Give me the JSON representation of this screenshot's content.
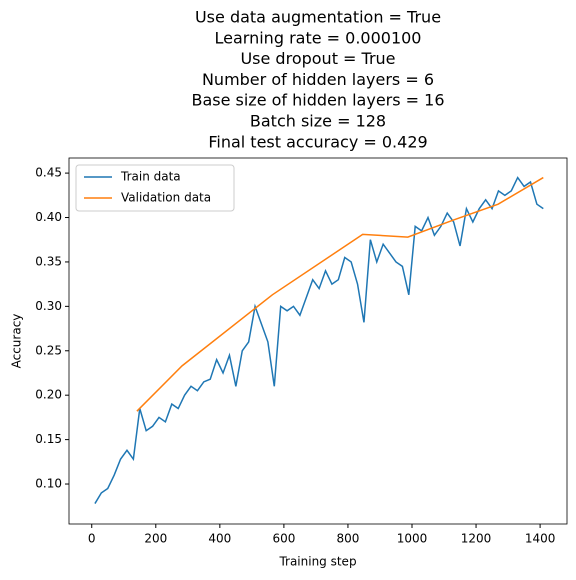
{
  "chart_data": {
    "type": "line",
    "title": [
      "Use data augmentation = True",
      "Learning rate = 0.000100",
      "Use dropout = True",
      "Number of hidden layers = 6",
      "Base size of hidden layers = 16",
      "Batch size = 128",
      "Final test accuracy = 0.429"
    ],
    "xlabel": "Training step",
    "ylabel": "Accuracy",
    "xlim": [
      -71,
      1484
    ],
    "ylim": [
      0.055,
      0.467
    ],
    "xticks": [
      0,
      200,
      400,
      600,
      800,
      1000,
      1200,
      1400
    ],
    "yticks": [
      {
        "value": 0.1,
        "label": "0.10"
      },
      0.15,
      {
        "value": 0.2,
        "label": "0.20"
      },
      0.25,
      {
        "value": 0.3,
        "label": "0.30"
      },
      0.35,
      {
        "value": 0.4,
        "label": "0.40"
      },
      0.45
    ],
    "legend": "upper left",
    "series": [
      {
        "name": "Train data",
        "color": "#1f77b4",
        "x": [
          10,
          30,
          50,
          70,
          90,
          110,
          130,
          150,
          170,
          190,
          210,
          230,
          250,
          270,
          290,
          310,
          330,
          350,
          370,
          390,
          410,
          430,
          450,
          470,
          490,
          510,
          530,
          550,
          570,
          590,
          610,
          630,
          650,
          670,
          690,
          710,
          730,
          750,
          770,
          790,
          810,
          830,
          850,
          870,
          890,
          910,
          930,
          950,
          970,
          990,
          1010,
          1030,
          1050,
          1070,
          1090,
          1110,
          1130,
          1150,
          1170,
          1190,
          1210,
          1230,
          1250,
          1270,
          1290,
          1310,
          1330,
          1350,
          1370,
          1390,
          1410
        ],
        "values": [
          0.078,
          0.09,
          0.095,
          0.11,
          0.128,
          0.138,
          0.128,
          0.185,
          0.16,
          0.165,
          0.175,
          0.17,
          0.19,
          0.185,
          0.2,
          0.21,
          0.205,
          0.215,
          0.218,
          0.24,
          0.225,
          0.245,
          0.21,
          0.25,
          0.26,
          0.3,
          0.28,
          0.26,
          0.21,
          0.3,
          0.295,
          0.3,
          0.29,
          0.31,
          0.33,
          0.32,
          0.34,
          0.325,
          0.33,
          0.355,
          0.35,
          0.325,
          0.282,
          0.375,
          0.35,
          0.37,
          0.36,
          0.35,
          0.345,
          0.313,
          0.39,
          0.385,
          0.4,
          0.38,
          0.39,
          0.405,
          0.395,
          0.368,
          0.41,
          0.395,
          0.41,
          0.42,
          0.41,
          0.43,
          0.425,
          0.43,
          0.445,
          0.435,
          0.44,
          0.415,
          0.41
        ]
      },
      {
        "name": "Validation data",
        "color": "#ff7f0e",
        "x": [
          141,
          282,
          564,
          846,
          987,
          1128,
          1269,
          1410
        ],
        "values": [
          0.182,
          0.233,
          0.313,
          0.381,
          0.378,
          0.397,
          0.415,
          0.445
        ]
      }
    ]
  }
}
